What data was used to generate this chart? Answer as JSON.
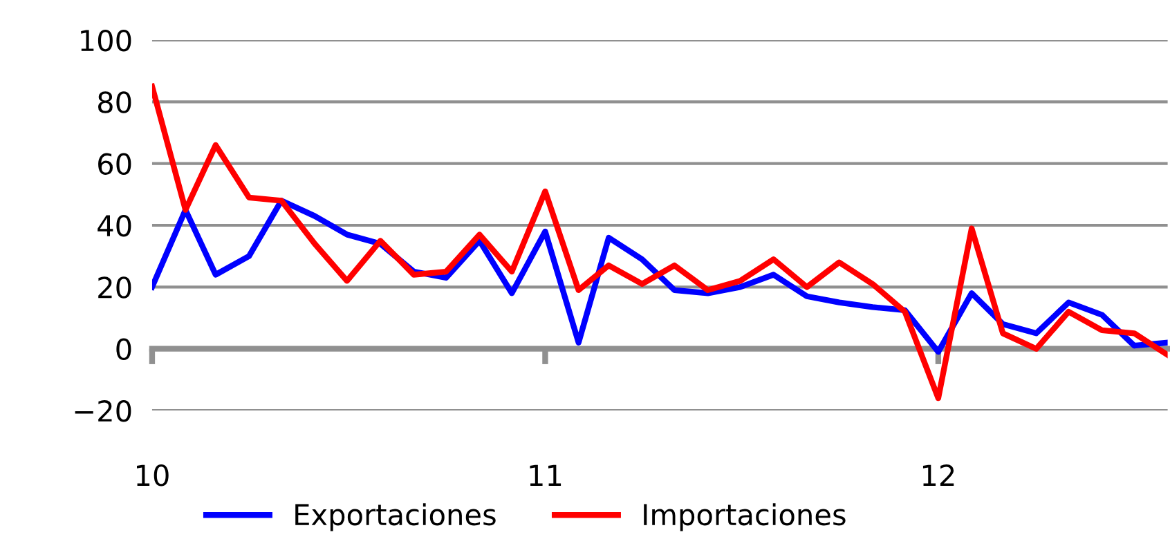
{
  "chart_data": {
    "type": "line",
    "x": [
      "2010-01",
      "2010-02",
      "2010-03",
      "2010-04",
      "2010-05",
      "2010-06",
      "2010-07",
      "2010-08",
      "2010-09",
      "2010-10",
      "2010-11",
      "2010-12",
      "2011-01",
      "2011-02",
      "2011-03",
      "2011-04",
      "2011-05",
      "2011-06",
      "2011-07",
      "2011-08",
      "2011-09",
      "2011-10",
      "2011-11",
      "2011-12",
      "2012-01",
      "2012-02",
      "2012-03",
      "2012-04",
      "2012-05",
      "2012-06",
      "2012-07",
      "2012-08"
    ],
    "series": [
      {
        "name": "Exportaciones",
        "color": "#0000ff",
        "values": [
          20,
          45,
          24,
          30,
          48,
          43,
          37,
          34,
          25,
          23,
          35,
          18,
          38,
          2,
          36,
          29,
          19,
          18,
          20,
          24,
          17,
          15,
          13.5,
          12.5,
          -1,
          18,
          8,
          5,
          15,
          11,
          1,
          2
        ]
      },
      {
        "name": "Importaciones",
        "color": "#ff0000",
        "values": [
          85,
          45,
          66,
          49,
          48,
          34,
          22,
          35,
          24,
          25,
          37,
          25,
          51,
          19,
          27,
          21,
          27,
          19,
          22,
          29,
          20,
          28,
          21,
          12,
          -16,
          39,
          5,
          0,
          12,
          6,
          5,
          -2
        ]
      }
    ],
    "xlim": [
      "2010-01",
      "2012-08"
    ],
    "xticks": [
      {
        "value": "2010-01",
        "label": "10"
      },
      {
        "value": "2011-01",
        "label": "11"
      },
      {
        "value": "2012-01",
        "label": "12"
      }
    ],
    "ylim": [
      -20,
      100
    ],
    "yticks": [
      {
        "value": -20,
        "label": "−20"
      },
      0,
      20,
      40,
      60,
      80,
      100
    ],
    "grid": "y",
    "legend": "bottom",
    "line_style": "solid",
    "marker": "none"
  }
}
